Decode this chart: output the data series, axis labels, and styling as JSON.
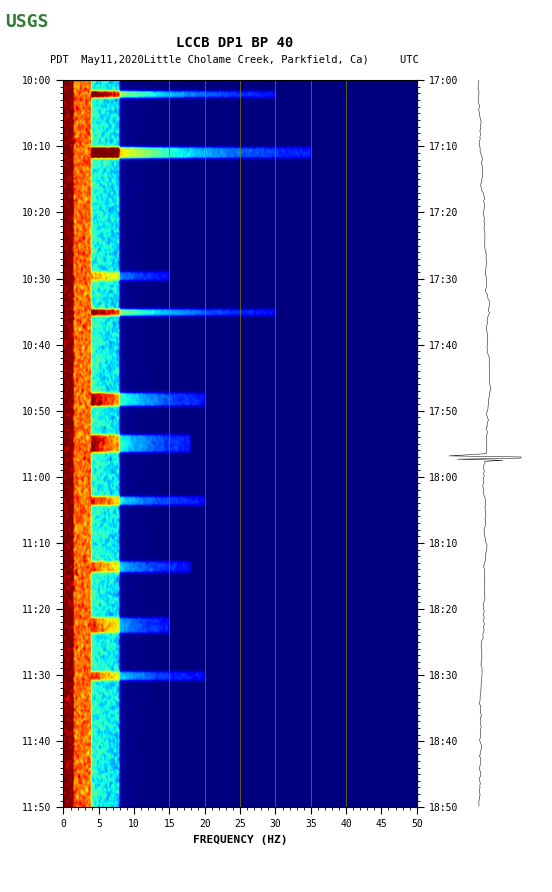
{
  "title_line1": "LCCB DP1 BP 40",
  "title_line2": "PDT  May11,2020Little Cholame Creek, Parkfield, Ca)     UTC",
  "xlabel": "FREQUENCY (HZ)",
  "freq_min": 0,
  "freq_max": 50,
  "freq_ticks": [
    0,
    5,
    10,
    15,
    20,
    25,
    30,
    35,
    40,
    45,
    50
  ],
  "time_ticks_left": [
    "10:00",
    "10:10",
    "10:20",
    "10:30",
    "10:40",
    "10:50",
    "11:00",
    "11:10",
    "11:20",
    "11:30",
    "11:40",
    "11:50"
  ],
  "time_ticks_right": [
    "17:00",
    "17:10",
    "17:20",
    "17:30",
    "17:40",
    "17:50",
    "18:00",
    "18:10",
    "18:20",
    "18:30",
    "18:40",
    "18:50"
  ],
  "n_time": 660,
  "n_freq": 500,
  "bg_color": "#ffffff",
  "vertical_lines_freq": [
    15,
    20,
    25,
    30,
    35,
    40
  ],
  "vertical_line_color": "#808000",
  "waveform_color": "#000000",
  "seed": 42,
  "colormap": "jet",
  "usgs_green": "#2e7d32"
}
